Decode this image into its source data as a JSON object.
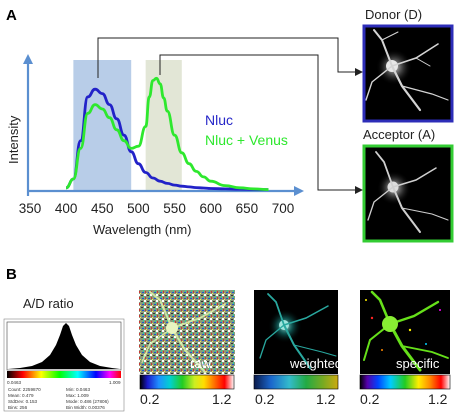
{
  "panel_a": {
    "letter": "A",
    "chart_data": {
      "type": "line",
      "title": "",
      "xlabel": "Wavelength (nm)",
      "ylabel": "Intensity",
      "xlim": [
        350,
        700
      ],
      "ylim": [
        0,
        1.05
      ],
      "x_ticks": [
        "350",
        "400",
        "450",
        "500",
        "550",
        "600",
        "650",
        "700"
      ],
      "shaded_bands": [
        {
          "from": 410,
          "to": 490,
          "color": "#b8cde8"
        },
        {
          "from": 510,
          "to": 560,
          "color": "#e2e6d6"
        }
      ],
      "series": [
        {
          "name": "Nluc",
          "color": "#2222c8",
          "x": [
            400,
            410,
            420,
            430,
            440,
            450,
            460,
            470,
            480,
            490,
            500,
            510,
            520,
            530,
            540,
            550,
            560,
            570,
            580,
            590,
            600,
            620,
            640,
            660,
            680
          ],
          "y": [
            0.02,
            0.1,
            0.45,
            0.85,
            0.92,
            0.88,
            0.78,
            0.65,
            0.5,
            0.35,
            0.24,
            0.16,
            0.11,
            0.08,
            0.06,
            0.045,
            0.035,
            0.028,
            0.022,
            0.018,
            0.014,
            0.01,
            0.007,
            0.005,
            0.004
          ]
        },
        {
          "name": "Nluc + Venus",
          "color": "#2ee82e",
          "x": [
            400,
            410,
            420,
            430,
            440,
            450,
            460,
            470,
            480,
            490,
            500,
            510,
            515,
            520,
            525,
            530,
            535,
            540,
            550,
            560,
            570,
            580,
            590,
            600,
            620,
            640,
            660,
            680
          ],
          "y": [
            0.02,
            0.1,
            0.38,
            0.7,
            0.78,
            0.74,
            0.66,
            0.55,
            0.45,
            0.38,
            0.4,
            0.58,
            0.85,
            1.0,
            1.02,
            0.97,
            0.84,
            0.72,
            0.5,
            0.34,
            0.24,
            0.17,
            0.12,
            0.08,
            0.04,
            0.02,
            0.01,
            0.004
          ]
        }
      ]
    },
    "donor_label": "Donor (D)",
    "acceptor_label": "Acceptor (A)",
    "donor_border": "#2d2db8",
    "acceptor_border": "#33cc33"
  },
  "panel_b": {
    "letter": "B",
    "ratio_label": "A/D ratio",
    "histogram": {
      "min_label": "0.0463",
      "max_label": "1.009",
      "stats": [
        {
          "label": "Count: 2259870"
        },
        {
          "label": "Min: 0.0463"
        },
        {
          "label": "Mean: 0.479"
        },
        {
          "label": "Max: 1.009"
        },
        {
          "label": "StdDev: 0.153"
        },
        {
          "label": "Mode: 0.486 (27806)"
        },
        {
          "label": "Bins: 256"
        },
        {
          "label": "Bin Width: 0.00376"
        }
      ]
    },
    "images": [
      {
        "label": "raw",
        "cbar_min": "0.2",
        "cbar_max": "1.2"
      },
      {
        "label": "weighted",
        "cbar_min": "0.2",
        "cbar_max": "1.2"
      },
      {
        "label": "specific",
        "cbar_min": "0.2",
        "cbar_max": "1.2"
      }
    ]
  }
}
